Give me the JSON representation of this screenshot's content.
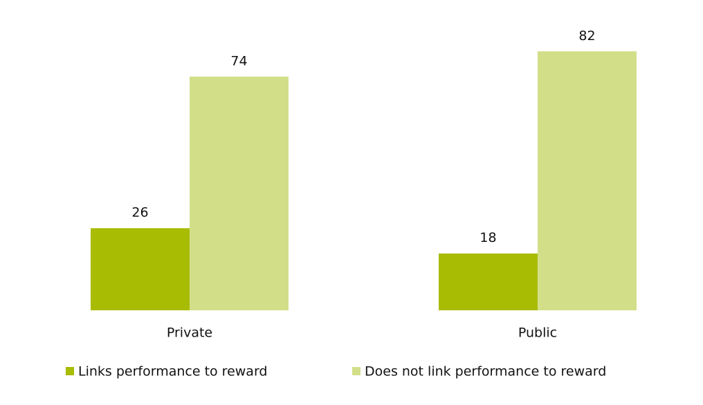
{
  "chart_data": {
    "type": "bar",
    "categories": [
      "Private",
      "Public"
    ],
    "series": [
      {
        "name": "Links performance to reward",
        "color": "#a8bc04",
        "values": [
          26,
          18
        ]
      },
      {
        "name": "Does not link performance to reward",
        "color": "#d3df88",
        "values": [
          74,
          82
        ]
      }
    ],
    "legend": "bottom"
  }
}
